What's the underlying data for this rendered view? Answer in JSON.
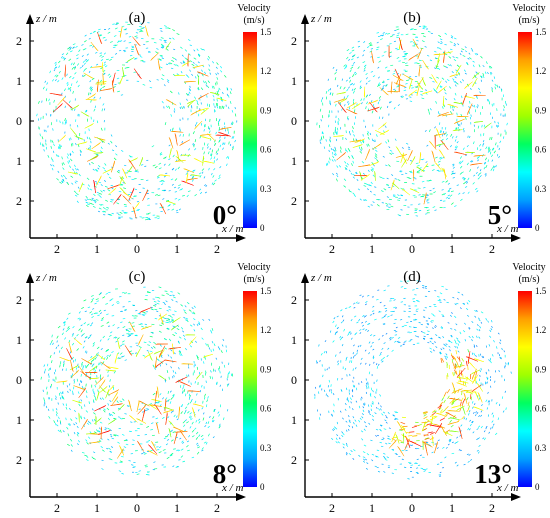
{
  "colorbar": {
    "title_line1": "Velocity",
    "title_line2": "(m/s)",
    "ticks": [
      "1.5",
      "1.2",
      "0.9",
      "0.6",
      "0.3",
      "0"
    ],
    "range": [
      0,
      1.5
    ],
    "colors": [
      "#0000ff",
      "#00a0ff",
      "#00ffff",
      "#00ff60",
      "#a0ff00",
      "#ffff00",
      "#ffa000",
      "#ff0000"
    ]
  },
  "axes": {
    "xlabel": "x / m",
    "ylabel": "z / m",
    "xticks": [
      "2",
      "1",
      "0",
      "1",
      "2"
    ],
    "yticks": [
      "2",
      "1",
      "0",
      "1",
      "2"
    ]
  },
  "chart_data": [
    {
      "type": "vector-field",
      "panel_label": "(a)",
      "angle_label": "0°",
      "xlabel": "x / m",
      "ylabel": "z / m",
      "xlim": [
        -2.7,
        2.7
      ],
      "ylim": [
        -2.7,
        2.7
      ],
      "colorbar_range": [
        0,
        1.5
      ],
      "pattern": "annular ring of vectors with high-velocity jets near inner core radius ~1 m",
      "inner_core_radius": 0.7,
      "outer_radius": 2.5,
      "hotspot_angle_deg": null
    },
    {
      "type": "vector-field",
      "panel_label": "(b)",
      "angle_label": "5°",
      "xlabel": "x / m",
      "ylabel": "z / m",
      "xlim": [
        -2.7,
        2.7
      ],
      "ylim": [
        -2.7,
        2.7
      ],
      "colorbar_range": [
        0,
        1.5
      ],
      "pattern": "scattered vectors with high-velocity spots in an annulus",
      "inner_core_radius": 0.4,
      "outer_radius": 2.4,
      "hotspot_angle_deg": null
    },
    {
      "type": "vector-field",
      "panel_label": "(c)",
      "angle_label": "8°",
      "xlabel": "x / m",
      "ylabel": "z / m",
      "xlim": [
        -2.7,
        2.7
      ],
      "ylim": [
        -2.7,
        2.7
      ],
      "colorbar_range": [
        0,
        1.5
      ],
      "pattern": "dense turbulent vectors with many high-velocity spots",
      "inner_core_radius": 0.35,
      "outer_radius": 2.4,
      "hotspot_angle_deg": null
    },
    {
      "type": "vector-field",
      "panel_label": "(d)",
      "angle_label": "13°",
      "xlabel": "x / m",
      "ylabel": "z / m",
      "xlim": [
        -2.7,
        2.7
      ],
      "ylim": [
        -2.7,
        2.7
      ],
      "colorbar_range": [
        0,
        1.5
      ],
      "pattern": "large empty core with strong flow concentrated at lower right",
      "inner_core_radius": 0.85,
      "outer_radius": 2.5,
      "hotspot_angle_deg": -40
    }
  ]
}
